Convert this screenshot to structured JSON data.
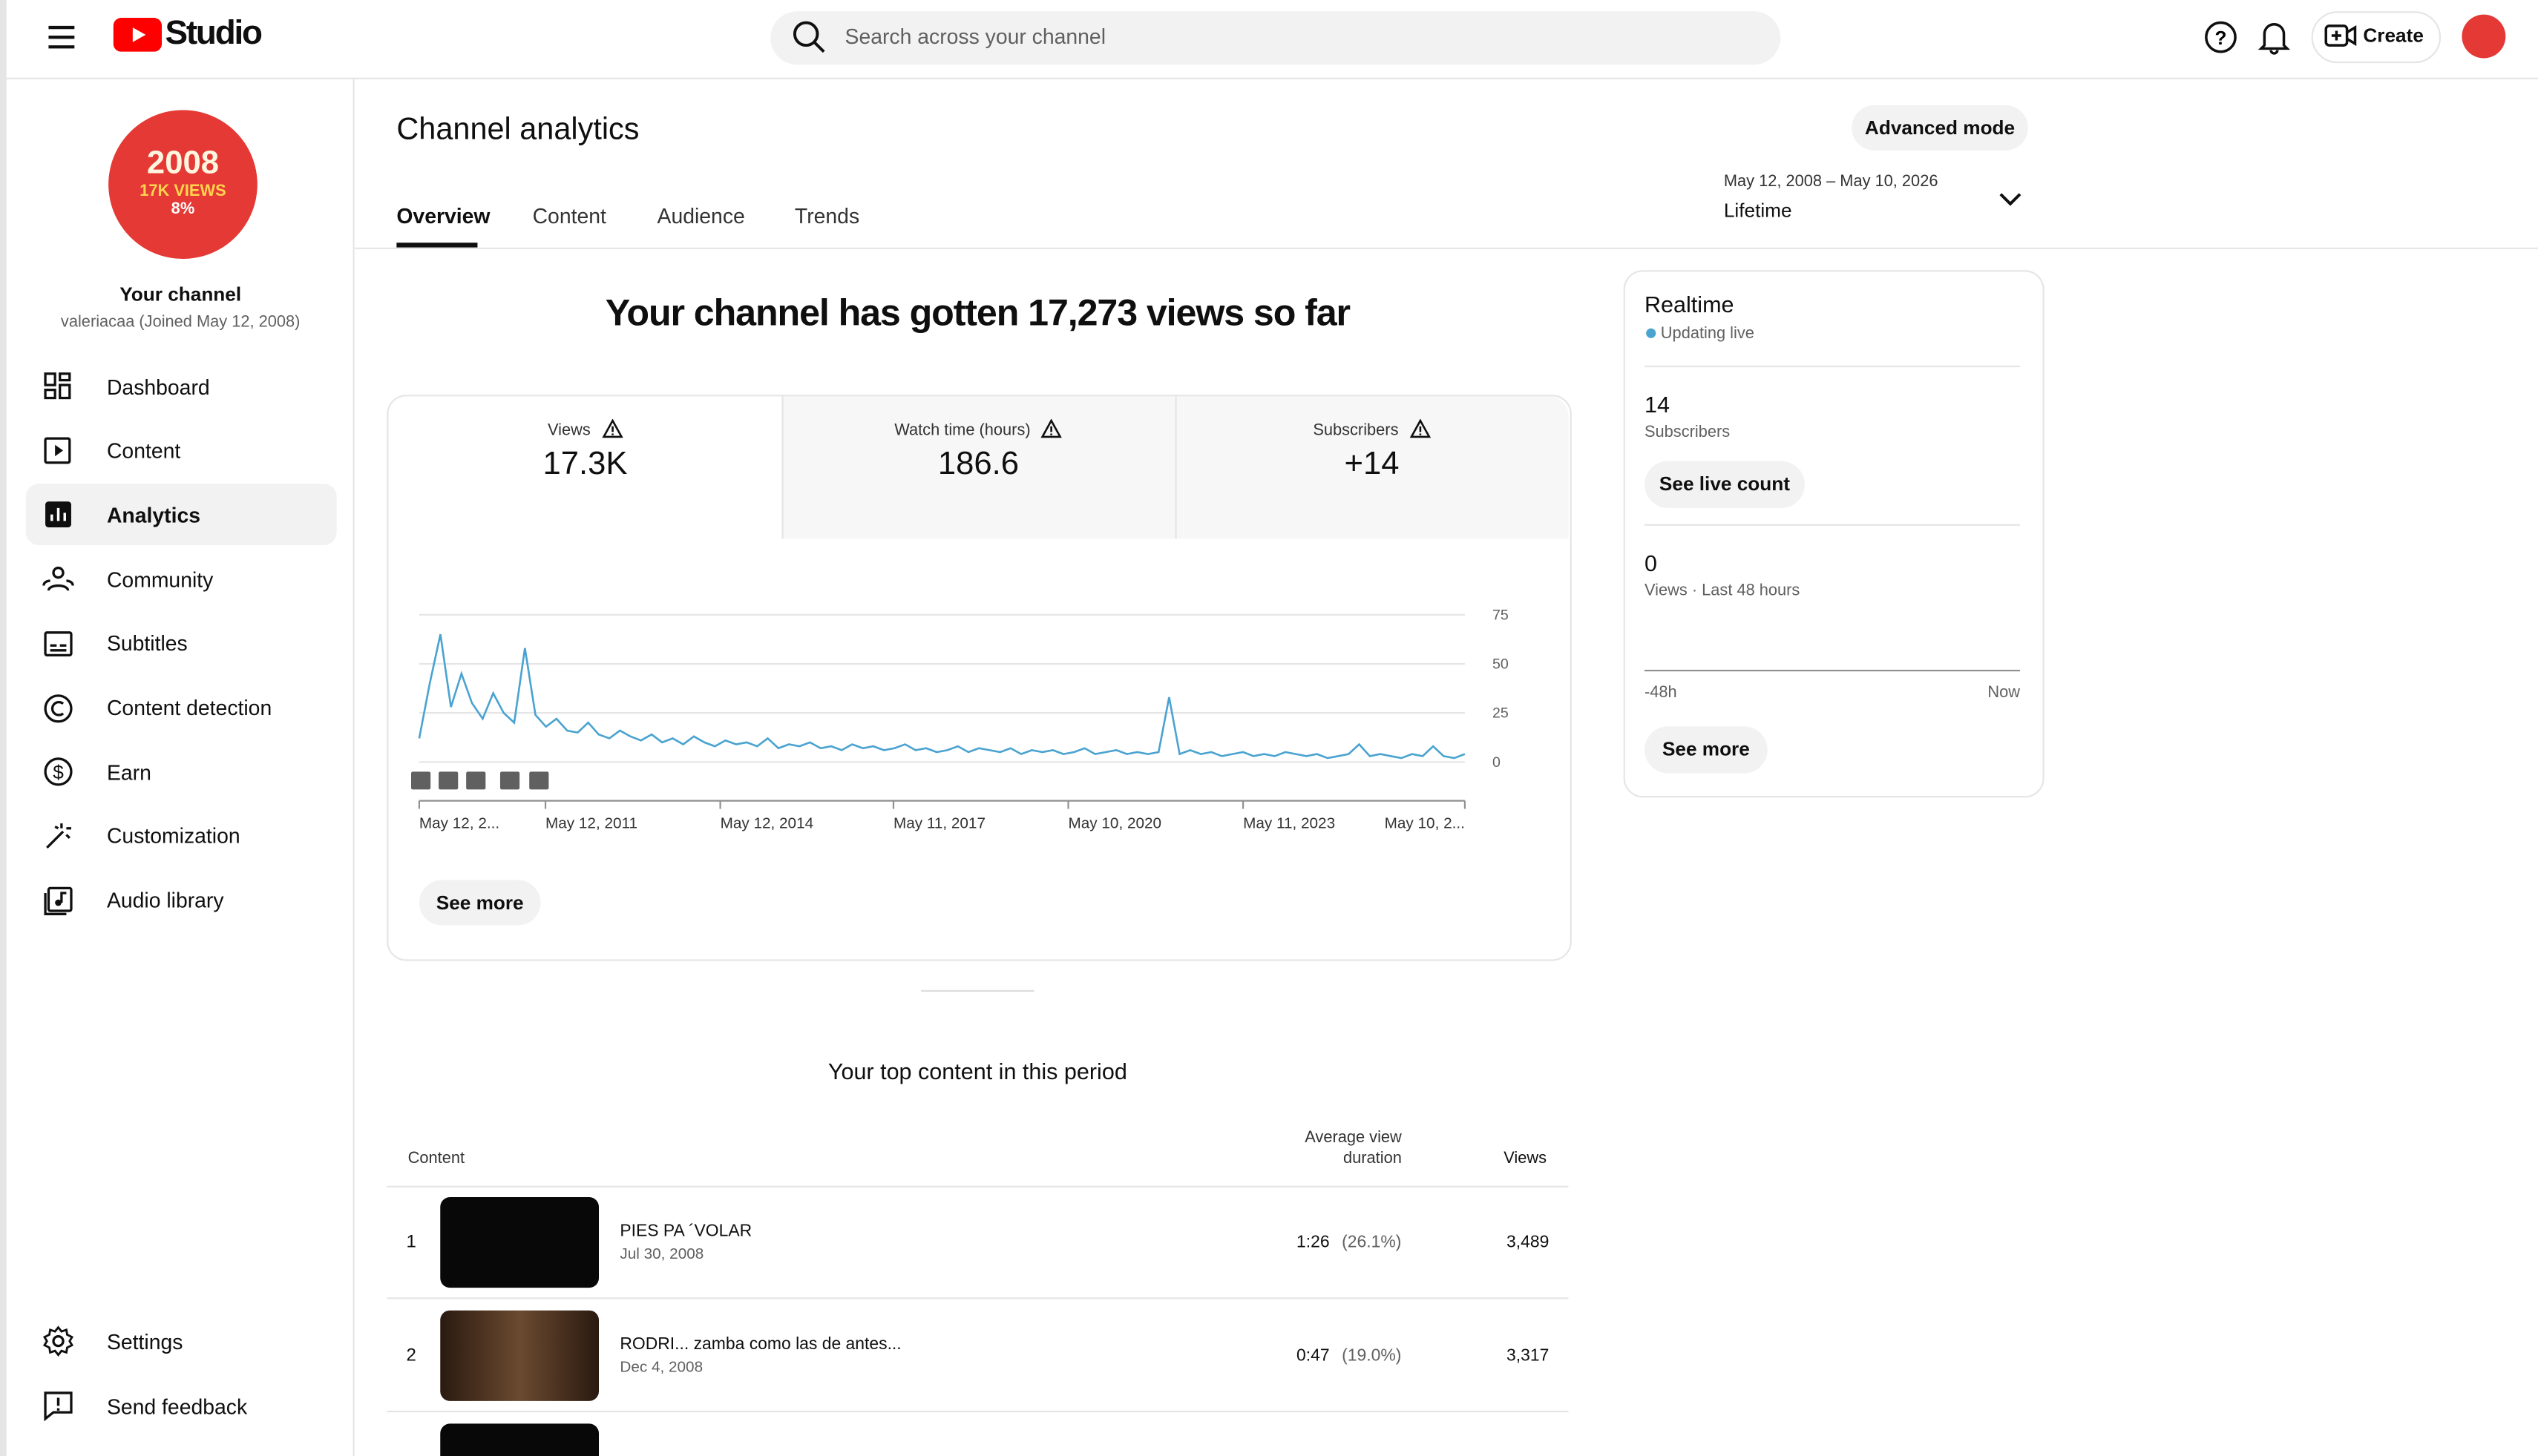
{
  "header": {
    "logo": "Studio",
    "search_placeholder": "Search across your channel",
    "create": "Create"
  },
  "sidebar": {
    "avatar": {
      "year": "2008",
      "views": "17K VIEWS",
      "percent": "8%"
    },
    "channel_title": "Your channel",
    "channel_subtitle": "valeriacaa (Joined May 12, 2008)",
    "nav": [
      "Dashboard",
      "Content",
      "Analytics",
      "Community",
      "Subtitles",
      "Content detection",
      "Earn",
      "Customization",
      "Audio library"
    ],
    "bottom": [
      "Settings",
      "Send feedback"
    ]
  },
  "main": {
    "title": "Channel analytics",
    "advanced_mode": "Advanced mode",
    "date_range": "May 12, 2008 – May 10, 2026",
    "period": "Lifetime",
    "tabs": [
      "Overview",
      "Content",
      "Audience",
      "Trends"
    ],
    "headline": "Your channel has gotten 17,273 views so far",
    "metrics": [
      {
        "label": "Views",
        "value": "17.3K"
      },
      {
        "label": "Watch time (hours)",
        "value": "186.6"
      },
      {
        "label": "Subscribers",
        "value": "+14"
      }
    ],
    "see_more": "See more",
    "top_content": {
      "title": "Your top content in this period",
      "columns": [
        "Content",
        "Average view duration",
        "Views"
      ],
      "rows": [
        {
          "rank": "1",
          "title": "PIES PA ´VOLAR",
          "date": "Jul 30, 2008",
          "duration": "1:26",
          "percent": "(26.1%)",
          "views": "3,489"
        },
        {
          "rank": "2",
          "title": "RODRI... zamba como las de antes...",
          "date": "Dec 4, 2008",
          "duration": "0:47",
          "percent": "(19.0%)",
          "views": "3,317"
        }
      ]
    }
  },
  "realtime": {
    "title": "Realtime",
    "status": "Updating live",
    "subscribers": "14",
    "subscribers_label": "Subscribers",
    "see_live": "See live count",
    "views": "0",
    "views_label": "Views · Last 48 hours",
    "start": "-48h",
    "end": "Now",
    "see_more": "See more"
  },
  "chart_data": {
    "type": "line",
    "color": "#4aa3d0",
    "ylim": [
      0,
      75
    ],
    "yticks": [
      0,
      25,
      50,
      75
    ],
    "grid": true,
    "x_labels": [
      "May 12, 2...",
      "May 12, 2011",
      "May 12, 2014",
      "May 11, 2017",
      "May 10, 2020",
      "May 11, 2023",
      "May 10, 2..."
    ],
    "values": [
      12,
      40,
      65,
      28,
      45,
      30,
      22,
      35,
      25,
      20,
      58,
      24,
      18,
      22,
      16,
      15,
      20,
      14,
      12,
      16,
      13,
      11,
      14,
      10,
      12,
      9,
      13,
      10,
      8,
      11,
      9,
      10,
      8,
      12,
      7,
      9,
      8,
      10,
      7,
      8,
      6,
      9,
      7,
      8,
      6,
      7,
      9,
      6,
      7,
      5,
      6,
      8,
      5,
      7,
      6,
      5,
      7,
      4,
      6,
      5,
      6,
      4,
      5,
      7,
      4,
      5,
      6,
      4,
      5,
      4,
      5,
      33,
      4,
      6,
      4,
      5,
      3,
      4,
      5,
      3,
      4,
      3,
      5,
      4,
      3,
      4,
      2,
      3,
      4,
      9,
      3,
      4,
      3,
      2,
      4,
      3,
      8,
      3,
      2,
      4
    ]
  }
}
